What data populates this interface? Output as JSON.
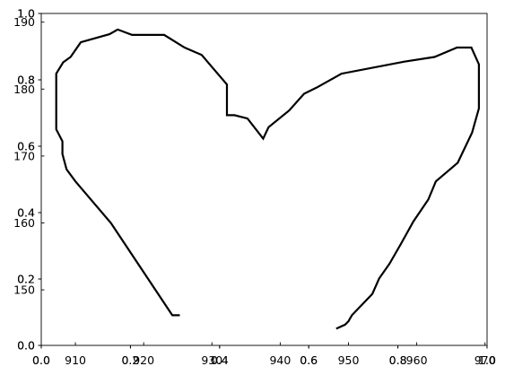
{
  "chart_data": [
    {
      "type": "line",
      "x_ticks": [
        {
          "value": 0.0,
          "label": "0.0"
        },
        {
          "value": 0.2,
          "label": "0.2"
        },
        {
          "value": 0.4,
          "label": "0.4"
        },
        {
          "value": 0.6,
          "label": "0.6"
        },
        {
          "value": 0.8,
          "label": "0.8"
        },
        {
          "value": 1.0,
          "label": "1.0"
        }
      ],
      "y_ticks": [
        {
          "value": 0.0,
          "label": "0.0"
        },
        {
          "value": 0.2,
          "label": "0.2"
        },
        {
          "value": 0.4,
          "label": "0.4"
        },
        {
          "value": 0.6,
          "label": "0.6"
        },
        {
          "value": 0.8,
          "label": "0.8"
        },
        {
          "value": 1.0,
          "label": "1.0"
        }
      ],
      "xlim": [
        0,
        1
      ],
      "ylim": [
        0,
        1
      ],
      "grid": false,
      "series": []
    },
    {
      "type": "line",
      "x_ticks": [
        {
          "value": 0.0,
          "label": "0.0"
        },
        {
          "value": 0.2,
          "label": "0.2"
        },
        {
          "value": 0.4,
          "label": "0.4"
        },
        {
          "value": 0.6,
          "label": "0.6"
        },
        {
          "value": 0.8,
          "label": "0.8"
        },
        {
          "value": 1.0,
          "label": "1.0"
        }
      ],
      "y_ticks": [
        {
          "value": 0.0,
          "label": "0.0"
        },
        {
          "value": 0.2,
          "label": "0.2"
        },
        {
          "value": 0.4,
          "label": "0.4"
        },
        {
          "value": 0.6,
          "label": "0.6"
        },
        {
          "value": 0.8,
          "label": "0.8"
        },
        {
          "value": 1.0,
          "label": "1.0"
        }
      ],
      "xlim": [
        0,
        1
      ],
      "ylim": [
        0,
        1
      ],
      "grid": false,
      "series": []
    },
    {
      "type": "line",
      "x_ticks": [
        {
          "value": 910,
          "label": "910"
        },
        {
          "value": 920,
          "label": "920"
        },
        {
          "value": 930,
          "label": "930"
        },
        {
          "value": 940,
          "label": "940"
        },
        {
          "value": 950,
          "label": "950"
        },
        {
          "value": 960,
          "label": "960"
        },
        {
          "value": 970,
          "label": "970"
        }
      ],
      "y_ticks": [
        {
          "value": 150,
          "label": "150"
        },
        {
          "value": 160,
          "label": "160"
        },
        {
          "value": 170,
          "label": "170"
        },
        {
          "value": 180,
          "label": "180"
        },
        {
          "value": 190,
          "label": "190"
        }
      ],
      "xlim": [
        905,
        970.3
      ],
      "ylim": [
        141.7,
        191.3
      ],
      "grid": false,
      "color": "#000000",
      "series": [
        {
          "x": [
            925.3,
            924.2,
            915.2,
            910.0,
            908.7,
            908.1,
            908.1,
            907.2,
            907.2,
            907.2,
            907.2,
            907.2,
            908.2,
            909.3,
            910.8,
            915.0,
            916.2,
            918.3,
            923.0,
            926.0,
            928.5,
            930.0,
            932.2,
            932.2,
            932.2,
            933.3,
            933.3,
            935.2,
            937.5,
            938.3,
            941.3,
            943.5,
            945.3,
            949.0,
            958.2,
            962.6,
            965.9,
            968.0,
            968.0,
            969.1,
            969.1,
            968.1,
            966.0,
            962.8,
            961.7,
            959.5,
            957.7,
            956.0,
            954.5,
            953.5,
            950.5,
            950.0,
            949.5,
            948.2
          ],
          "y": [
            146.2,
            146.2,
            160.0,
            166.2,
            168.0,
            170.3,
            172.2,
            174.0,
            174.0,
            179.0,
            182.3,
            182.3,
            184.0,
            184.8,
            187.0,
            188.2,
            188.9,
            188.1,
            188.1,
            186.2,
            185.1,
            183.3,
            180.7,
            179.9,
            176.1,
            176.1,
            176.1,
            175.6,
            172.6,
            174.3,
            176.8,
            179.3,
            180.2,
            182.3,
            184.1,
            184.8,
            186.2,
            186.2,
            186.2,
            183.7,
            177.1,
            173.5,
            169.0,
            166.2,
            163.5,
            160.2,
            156.9,
            153.9,
            151.7,
            149.4,
            146.2,
            145.3,
            144.8,
            144.2
          ]
        }
      ]
    }
  ]
}
